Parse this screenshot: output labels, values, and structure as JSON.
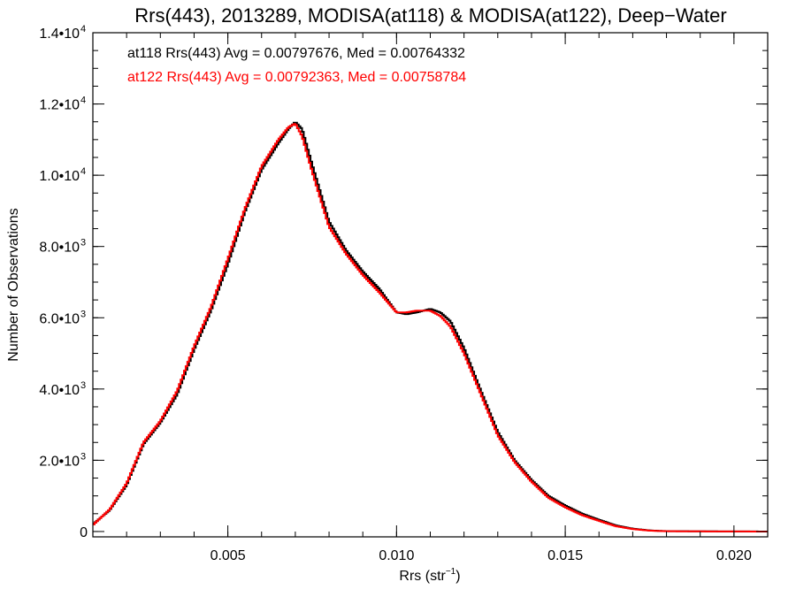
{
  "chart_data": {
    "type": "line",
    "step": true,
    "title": "Rrs(443), 2013289, MODISA(at118) & MODISA(at122), Deep−Water",
    "xlabel": "Rrs (str",
    "xlabel_sup": "−1",
    "xlabel_suffix": ")",
    "ylabel": "Number of Observations",
    "xlim": [
      0.001,
      0.021
    ],
    "ylim": [
      -150,
      14000
    ],
    "x_ticks": [
      {
        "value": 0.005,
        "label": "0.005"
      },
      {
        "value": 0.01,
        "label": "0.010"
      },
      {
        "value": 0.015,
        "label": "0.015"
      },
      {
        "value": 0.02,
        "label": "0.020"
      }
    ],
    "x_minor_step": 0.001,
    "y_ticks": [
      {
        "value": 0,
        "label": "0",
        "sup": ""
      },
      {
        "value": 2000,
        "label": "2.0•10",
        "sup": "3"
      },
      {
        "value": 4000,
        "label": "4.0•10",
        "sup": "3"
      },
      {
        "value": 6000,
        "label": "6.0•10",
        "sup": "3"
      },
      {
        "value": 8000,
        "label": "8.0•10",
        "sup": "3"
      },
      {
        "value": 10000,
        "label": "1.0•10",
        "sup": "4"
      },
      {
        "value": 12000,
        "label": "1.2•10",
        "sup": "4"
      },
      {
        "value": 14000,
        "label": "1.4•10",
        "sup": "4"
      }
    ],
    "y_minor_step": 500,
    "grid": false,
    "annotations": [
      {
        "text": "at118 Rrs(443) Avg = 0.00797676, Med = 0.00764332",
        "color": "#000000"
      },
      {
        "text": "at122 Rrs(443) Avg = 0.00792363, Med = 0.00758784",
        "color": "#ff0000"
      }
    ],
    "series": [
      {
        "color": "#000000",
        "x": [
          0.001,
          0.0015,
          0.002,
          0.0025,
          0.003,
          0.0035,
          0.004,
          0.0045,
          0.005,
          0.0055,
          0.006,
          0.0065,
          0.0068,
          0.007,
          0.0072,
          0.0075,
          0.008,
          0.0085,
          0.009,
          0.0095,
          0.01,
          0.0103,
          0.0106,
          0.011,
          0.0113,
          0.0116,
          0.012,
          0.0125,
          0.013,
          0.0135,
          0.014,
          0.0145,
          0.015,
          0.0155,
          0.016,
          0.0165,
          0.017,
          0.0175,
          0.018,
          0.019,
          0.02,
          0.021
        ],
        "y": [
          200,
          600,
          1300,
          2450,
          3050,
          3850,
          5100,
          6200,
          7500,
          8950,
          10150,
          10900,
          11300,
          11500,
          11300,
          10300,
          8700,
          7900,
          7300,
          6800,
          6150,
          6100,
          6150,
          6250,
          6150,
          5900,
          5150,
          3950,
          2800,
          2000,
          1450,
          1000,
          730,
          500,
          330,
          170,
          80,
          30,
          10,
          5,
          2,
          0
        ]
      },
      {
        "color": "#ff0000",
        "x": [
          0.001,
          0.0015,
          0.002,
          0.0025,
          0.003,
          0.0035,
          0.004,
          0.0045,
          0.005,
          0.0055,
          0.006,
          0.0065,
          0.0068,
          0.007,
          0.0072,
          0.0075,
          0.008,
          0.0085,
          0.009,
          0.0095,
          0.01,
          0.0103,
          0.0106,
          0.011,
          0.0113,
          0.0116,
          0.012,
          0.0125,
          0.013,
          0.0135,
          0.014,
          0.0145,
          0.015,
          0.0155,
          0.016,
          0.0165,
          0.017,
          0.0175,
          0.018,
          0.019,
          0.02,
          0.021
        ],
        "y": [
          180,
          620,
          1350,
          2500,
          3100,
          3950,
          5200,
          6300,
          7650,
          9050,
          10250,
          11000,
          11350,
          11450,
          11100,
          10100,
          8550,
          7800,
          7200,
          6700,
          6150,
          6150,
          6200,
          6200,
          6050,
          5750,
          5000,
          3850,
          2700,
          1950,
          1400,
          950,
          680,
          460,
          300,
          150,
          70,
          25,
          8,
          4,
          1,
          0
        ]
      }
    ]
  }
}
